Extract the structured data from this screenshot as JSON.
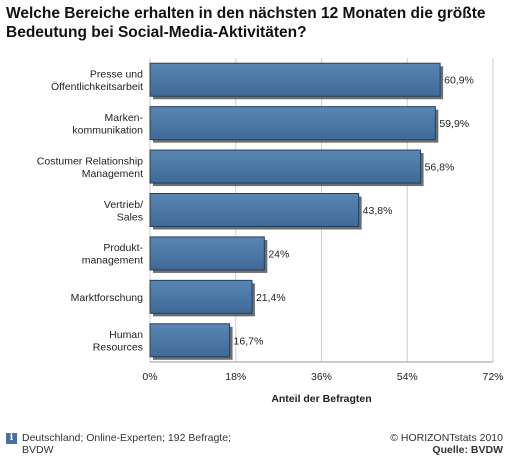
{
  "title": "Welche Bereiche erhalten in den nächsten 12 Monaten die größte Bedeutung bei Social-Media-Aktivitäten?",
  "chart_data": {
    "type": "bar",
    "orientation": "horizontal",
    "categories": [
      [
        "Presse und",
        "Öffentlichkeitsarbeit"
      ],
      [
        "Marken-",
        "kommunikation"
      ],
      [
        "Costumer Relationship",
        "Management"
      ],
      [
        "Vertrieb/",
        "Sales"
      ],
      [
        "Produkt-",
        "management"
      ],
      [
        "Marktforschung"
      ],
      [
        "Human",
        "Resources"
      ]
    ],
    "values": [
      60.9,
      59.9,
      56.8,
      43.8,
      24,
      21.4,
      16.7
    ],
    "value_labels": [
      "60,9%",
      "59,9%",
      "56,8%",
      "43,8%",
      "24%",
      "21,4%",
      "16,7%"
    ],
    "xlim": [
      0,
      72
    ],
    "xticks": [
      0,
      18,
      36,
      54,
      72
    ],
    "xtick_labels": [
      "0%",
      "18%",
      "36%",
      "54%",
      "72%"
    ],
    "xlabel": "Anteil der Befragten",
    "bar_color": "#4a76a3",
    "grid": true
  },
  "footer": {
    "info_icon": "info-icon",
    "note": "Deutschland; Online-Experten; 192 Befragte; BVDW",
    "copyright": "© HORIZONTstats 2010",
    "source": "Quelle: BVDW"
  }
}
